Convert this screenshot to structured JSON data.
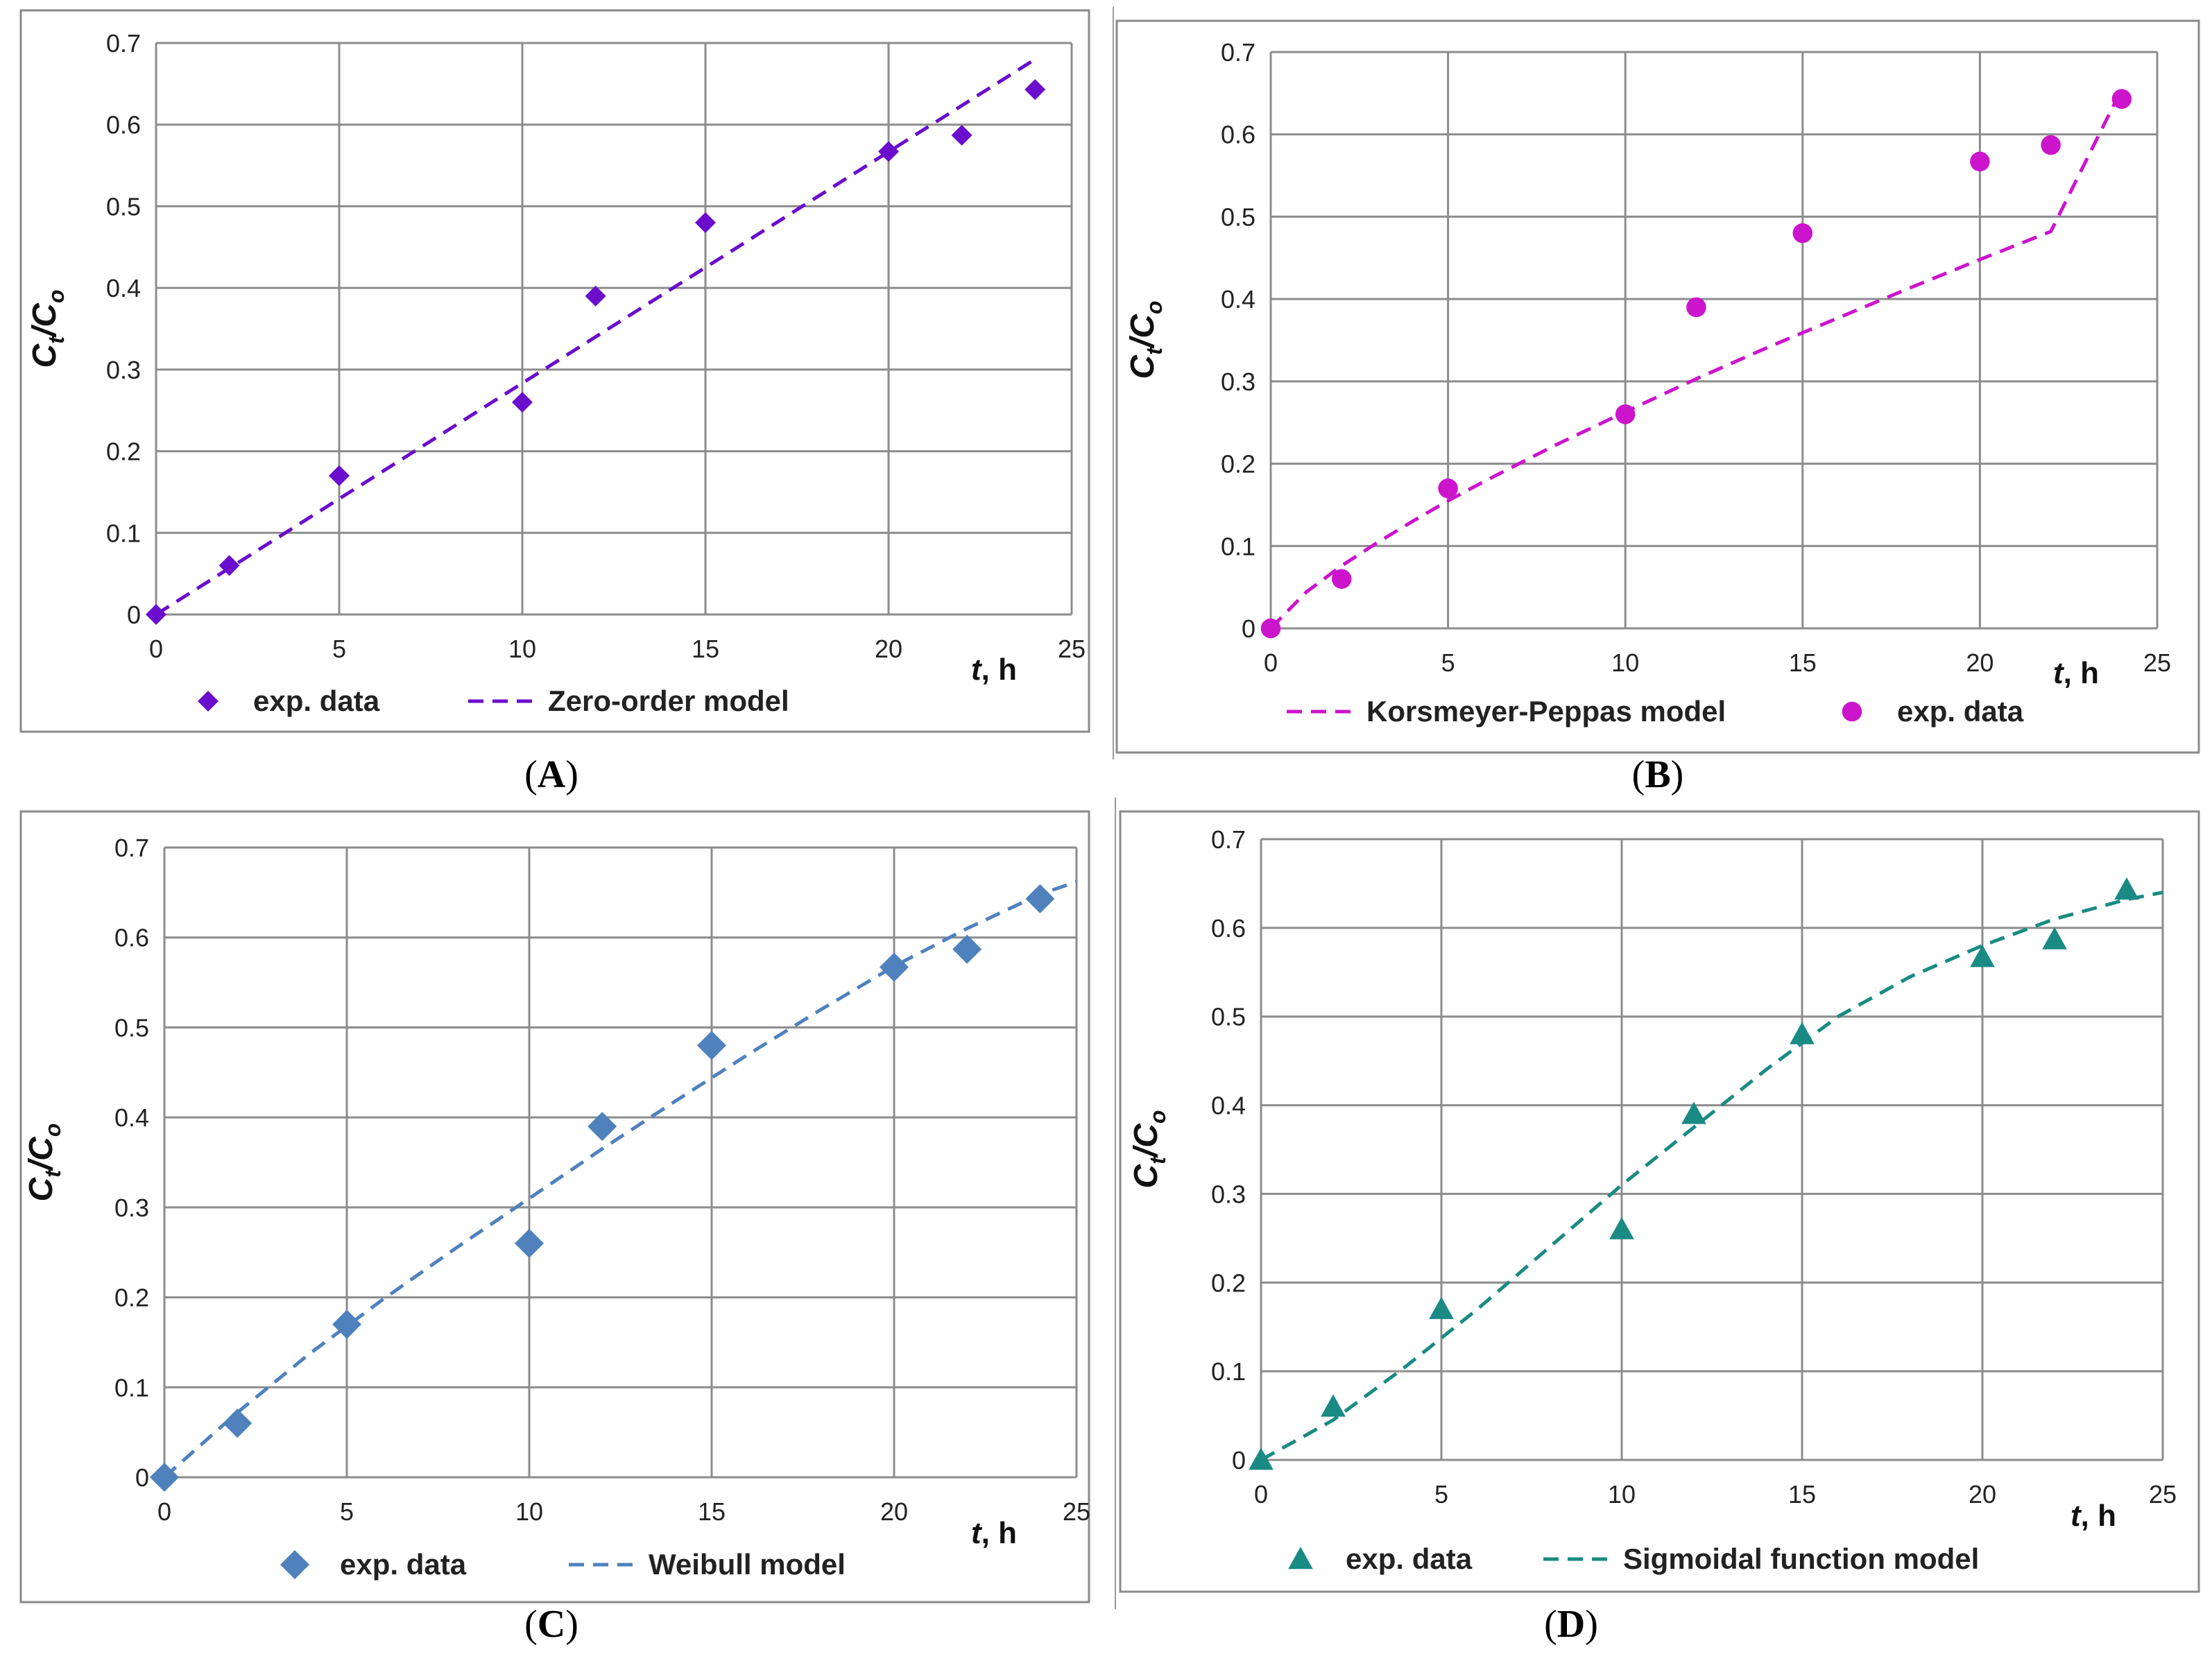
{
  "figure": {
    "panels": [
      "A",
      "B",
      "C",
      "D"
    ]
  },
  "chart_data": [
    {
      "id": "A",
      "type": "scatter",
      "caption_letter": "A",
      "xlabel": "t, h",
      "xlabel_italic": "t",
      "xlabel_rest": ", h",
      "ylabel_main": "C",
      "ylabel_sub1": "t",
      "ylabel_slash": "/C",
      "ylabel_sub2": "o",
      "xlim": [
        0,
        25
      ],
      "ylim": [
        0,
        0.7
      ],
      "xticks": [
        0,
        5,
        10,
        15,
        20,
        25
      ],
      "yticks": [
        0,
        0.1,
        0.2,
        0.3,
        0.4,
        0.5,
        0.6,
        0.7
      ],
      "grid": true,
      "color": "#6a0dcc",
      "marker": "diamond",
      "legend_order": [
        "data",
        "model"
      ],
      "series": [
        {
          "name": "exp. data",
          "kind": "points",
          "x": [
            0,
            2,
            5,
            10,
            12,
            15,
            20,
            22,
            24
          ],
          "y": [
            0,
            0.06,
            0.17,
            0.26,
            0.39,
            0.48,
            0.567,
            0.587,
            0.643
          ]
        },
        {
          "name": "Zero-order model",
          "kind": "line",
          "x": [
            0,
            24
          ],
          "y": [
            0,
            0.68
          ]
        }
      ]
    },
    {
      "id": "B",
      "type": "scatter",
      "caption_letter": "B",
      "xlabel": "t, h",
      "xlabel_italic": "t",
      "xlabel_rest": ", h",
      "ylabel_main": "C",
      "ylabel_sub1": "t",
      "ylabel_slash": "/C",
      "ylabel_sub2": "o",
      "xlim": [
        0,
        25
      ],
      "ylim": [
        0,
        0.7
      ],
      "xticks": [
        0,
        5,
        10,
        15,
        20,
        25
      ],
      "yticks": [
        0,
        0.1,
        0.2,
        0.3,
        0.4,
        0.5,
        0.6,
        0.7
      ],
      "grid": true,
      "color": "#cc14cc",
      "marker": "circle",
      "legend_order": [
        "model",
        "data"
      ],
      "series": [
        {
          "name": "exp. data",
          "kind": "points",
          "x": [
            0,
            2,
            5,
            10,
            12,
            15,
            20,
            22,
            24
          ],
          "y": [
            0,
            0.06,
            0.17,
            0.26,
            0.39,
            0.48,
            0.567,
            0.587,
            0.643
          ]
        },
        {
          "name": "Korsmeyer-Peppas model",
          "kind": "line",
          "x": [
            0,
            1,
            2,
            3,
            4,
            5,
            6,
            8,
            10,
            12,
            14,
            16,
            18,
            20,
            22,
            24
          ],
          "y": [
            0,
            0.044,
            0.076,
            0.104,
            0.13,
            0.155,
            0.178,
            0.222,
            0.263,
            0.303,
            0.341,
            0.377,
            0.413,
            0.448,
            0.482,
            0.655
          ]
        }
      ]
    },
    {
      "id": "C",
      "type": "scatter",
      "caption_letter": "C",
      "xlabel": "t, h",
      "xlabel_italic": "t",
      "xlabel_rest": ", h",
      "ylabel_main": "C",
      "ylabel_sub1": "t",
      "ylabel_slash": "/C",
      "ylabel_sub2": "o",
      "xlim": [
        0,
        25
      ],
      "ylim": [
        0,
        0.7
      ],
      "xticks": [
        0,
        5,
        10,
        15,
        20,
        25
      ],
      "yticks": [
        0,
        0.1,
        0.2,
        0.3,
        0.4,
        0.5,
        0.6,
        0.7
      ],
      "grid": true,
      "color": "#4f81bd",
      "marker": "diamond",
      "legend_order": [
        "data",
        "model"
      ],
      "series": [
        {
          "name": "exp. data",
          "kind": "points",
          "x": [
            0,
            2,
            5,
            10,
            12,
            15,
            20,
            22,
            24
          ],
          "y": [
            0,
            0.06,
            0.17,
            0.26,
            0.39,
            0.48,
            0.567,
            0.587,
            0.643
          ]
        },
        {
          "name": "Weibull model",
          "kind": "line",
          "x": [
            0,
            2,
            4,
            6,
            8,
            10,
            12,
            14,
            16,
            18,
            20,
            22,
            24,
            25
          ],
          "y": [
            0,
            0.072,
            0.138,
            0.198,
            0.255,
            0.31,
            0.365,
            0.418,
            0.47,
            0.52,
            0.568,
            0.61,
            0.648,
            0.662
          ]
        }
      ]
    },
    {
      "id": "D",
      "type": "scatter",
      "caption_letter": "D",
      "xlabel": "t, h",
      "xlabel_italic": "t",
      "xlabel_rest": ", h",
      "ylabel_main": "C",
      "ylabel_sub1": "t",
      "ylabel_slash": "/C",
      "ylabel_sub2": "o",
      "xlim": [
        0,
        25
      ],
      "ylim": [
        0,
        0.7
      ],
      "xticks": [
        0,
        5,
        10,
        15,
        20,
        25
      ],
      "yticks": [
        0,
        0.1,
        0.2,
        0.3,
        0.4,
        0.5,
        0.6,
        0.7
      ],
      "grid": true,
      "color": "#1a8a84",
      "marker": "triangle",
      "legend_order": [
        "data",
        "model"
      ],
      "series": [
        {
          "name": "exp. data",
          "kind": "points",
          "x": [
            0,
            2,
            5,
            10,
            12,
            15,
            20,
            22,
            24
          ],
          "y": [
            0,
            0.06,
            0.17,
            0.26,
            0.39,
            0.48,
            0.567,
            0.587,
            0.643
          ]
        },
        {
          "name": "Sigmoidal function model",
          "kind": "line",
          "x": [
            0,
            2,
            4,
            6,
            8,
            10,
            12,
            14,
            16,
            18,
            20,
            22,
            24,
            25
          ],
          "y": [
            0,
            0.045,
            0.105,
            0.17,
            0.24,
            0.31,
            0.375,
            0.44,
            0.5,
            0.545,
            0.58,
            0.61,
            0.632,
            0.64
          ]
        }
      ]
    }
  ]
}
